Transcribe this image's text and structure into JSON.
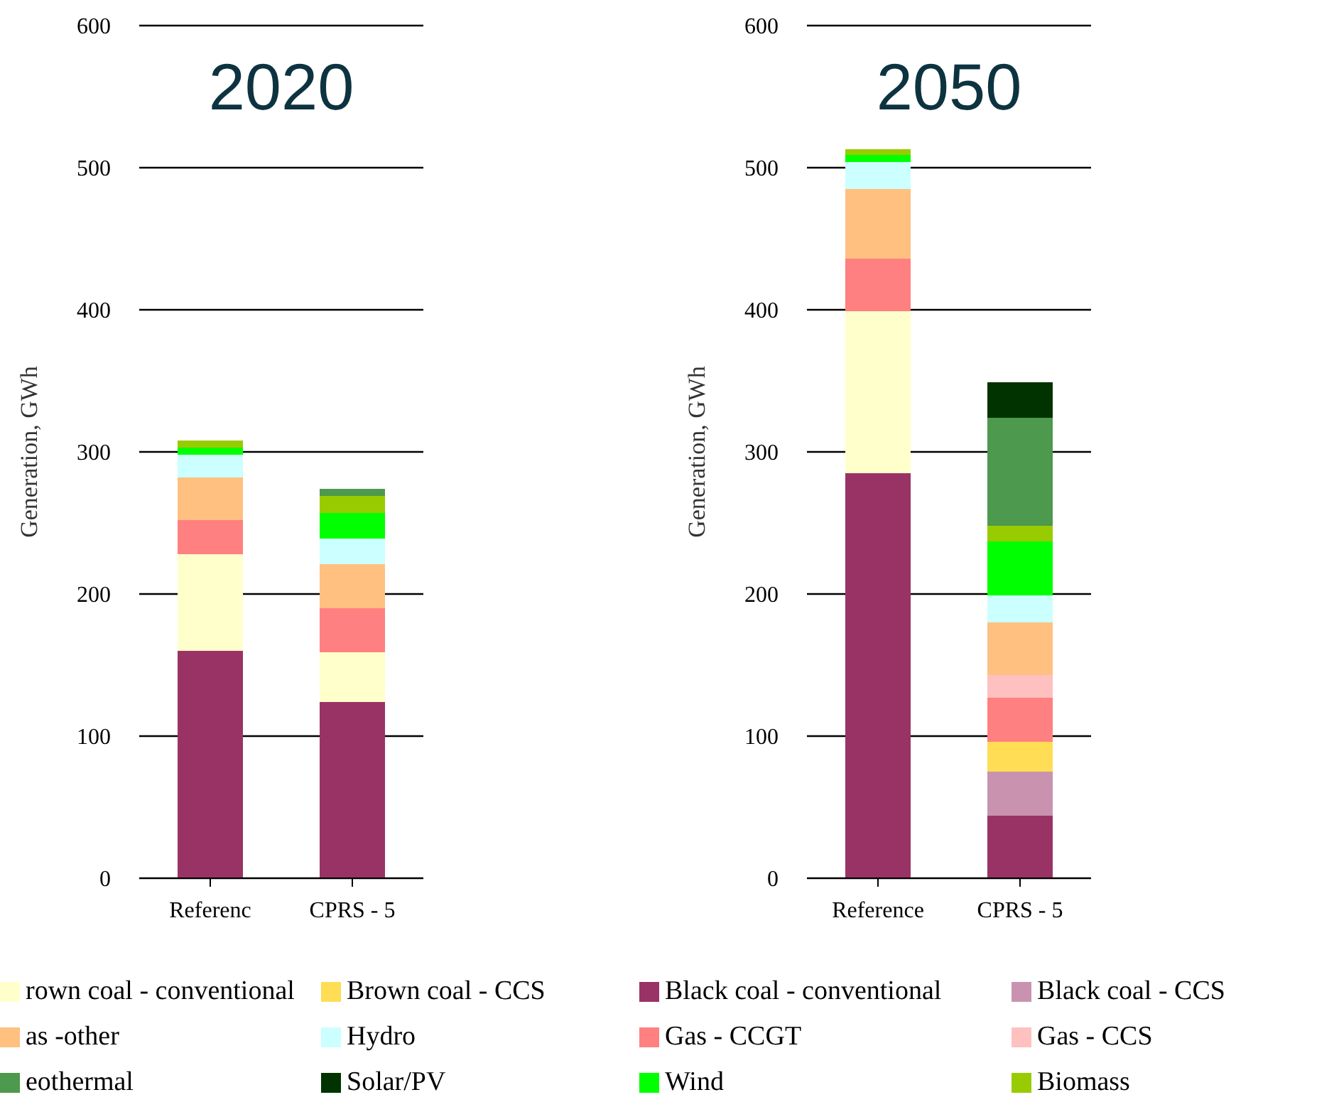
{
  "chart_data": [
    {
      "type": "bar",
      "title": "2020",
      "ylabel": "Generation, GWh",
      "categories": [
        "Referenc",
        "CPRS - 5"
      ],
      "stacked": true,
      "ylim": [
        0,
        600
      ],
      "yticks": [
        0,
        100,
        200,
        300,
        400,
        500,
        600
      ],
      "grid": "y",
      "legend": "bottom",
      "series": [
        {
          "name": "Black coal - conventional",
          "color": "#993366",
          "values": [
            160,
            124
          ]
        },
        {
          "name": "Black coal - CCS",
          "color": "#c993b0",
          "values": [
            0,
            0
          ]
        },
        {
          "name": "rown coal - conventional",
          "color": "#ffffcc",
          "values": [
            68,
            35
          ]
        },
        {
          "name": "Brown coal - CCS",
          "color": "#ffdd55",
          "values": [
            0,
            0
          ]
        },
        {
          "name": "Gas - CCGT",
          "color": "#ff8080",
          "values": [
            24,
            31
          ]
        },
        {
          "name": "Gas - CCS",
          "color": "#ffc0c0",
          "values": [
            0,
            0
          ]
        },
        {
          "name": "as -other",
          "color": "#ffc080",
          "values": [
            30,
            31
          ]
        },
        {
          "name": "Hydro",
          "color": "#ccffff",
          "values": [
            16,
            18
          ]
        },
        {
          "name": "Wind",
          "color": "#00ff00",
          "values": [
            5,
            18
          ]
        },
        {
          "name": "Biomass",
          "color": "#99cc00",
          "values": [
            5,
            12
          ]
        },
        {
          "name": "eothermal",
          "color": "#4d994d",
          "values": [
            0,
            5
          ]
        },
        {
          "name": "Solar/PV",
          "color": "#003300",
          "values": [
            0,
            0
          ]
        }
      ]
    },
    {
      "type": "bar",
      "title": "2050",
      "ylabel": "Generation, GWh",
      "categories": [
        "Reference",
        "CPRS - 5"
      ],
      "stacked": true,
      "ylim": [
        0,
        600
      ],
      "yticks": [
        0,
        100,
        200,
        300,
        400,
        500,
        600
      ],
      "grid": "y",
      "series": [
        {
          "color": "#993366",
          "values": [
            285,
            44
          ]
        },
        {
          "color": "#c993b0",
          "values": [
            0,
            31
          ]
        },
        {
          "color": "#ffffcc",
          "values": [
            114,
            0
          ]
        },
        {
          "color": "#ffdd55",
          "values": [
            0,
            21
          ]
        },
        {
          "color": "#ff8080",
          "values": [
            37,
            31
          ]
        },
        {
          "color": "#ffc0c0",
          "values": [
            0,
            16
          ]
        },
        {
          "color": "#ffc080",
          "values": [
            49,
            37
          ]
        },
        {
          "color": "#ccffff",
          "values": [
            19,
            19
          ]
        },
        {
          "color": "#00ff00",
          "values": [
            5,
            38
          ]
        },
        {
          "color": "#99cc00",
          "values": [
            4,
            11
          ]
        },
        {
          "color": "#4d994d",
          "values": [
            0,
            76
          ]
        },
        {
          "color": "#003300",
          "values": [
            0,
            25
          ]
        }
      ]
    }
  ]
}
